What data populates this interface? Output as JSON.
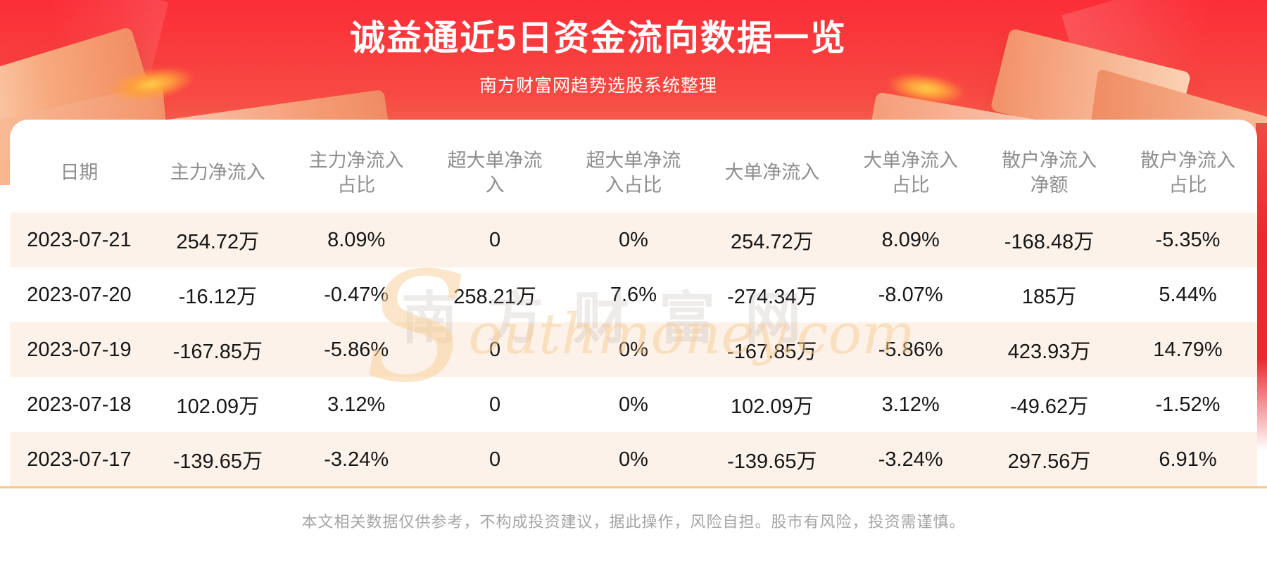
{
  "banner": {
    "title": "诚益通近5日资金流向数据一览",
    "subtitle": "南方财富网趋势选股系统整理"
  },
  "table": {
    "headers": [
      "日期",
      "主力净流入",
      "主力净流入占比",
      "超大单净流入",
      "超大单净流入占比",
      "大单净流入",
      "大单净流入占比",
      "散户净流入净额",
      "散户净流入占比"
    ],
    "rows": [
      {
        "cells": [
          "2023-07-21",
          "254.72万",
          "8.09%",
          "0",
          "0%",
          "254.72万",
          "8.09%",
          "-168.48万",
          "-5.35%"
        ]
      },
      {
        "cells": [
          "2023-07-20",
          "-16.12万",
          "-0.47%",
          "258.21万",
          "7.6%",
          "-274.34万",
          "-8.07%",
          "185万",
          "5.44%"
        ]
      },
      {
        "cells": [
          "2023-07-19",
          "-167.85万",
          "-5.86%",
          "0",
          "0%",
          "-167.85万",
          "-5.86%",
          "423.93万",
          "14.79%"
        ]
      },
      {
        "cells": [
          "2023-07-18",
          "102.09万",
          "3.12%",
          "0",
          "0%",
          "102.09万",
          "3.12%",
          "-49.62万",
          "-1.52%"
        ]
      },
      {
        "cells": [
          "2023-07-17",
          "-139.65万",
          "-3.24%",
          "0",
          "0%",
          "-139.65万",
          "-3.24%",
          "297.56万",
          "6.91%"
        ]
      }
    ]
  },
  "chart_data": {
    "type": "table",
    "title": "诚益通近5日资金流向数据一览",
    "subtitle": "南方财富网趋势选股系统整理",
    "columns": [
      "日期",
      "主力净流入",
      "主力净流入占比",
      "超大单净流入",
      "超大单净流入占比",
      "大单净流入",
      "大单净流入占比",
      "散户净流入净额",
      "散户净流入占比"
    ],
    "rows": [
      [
        "2023-07-21",
        "254.72万",
        "8.09%",
        "0",
        "0%",
        "254.72万",
        "8.09%",
        "-168.48万",
        "-5.35%"
      ],
      [
        "2023-07-20",
        "-16.12万",
        "-0.47%",
        "258.21万",
        "7.6%",
        "-274.34万",
        "-8.07%",
        "185万",
        "5.44%"
      ],
      [
        "2023-07-19",
        "-167.85万",
        "-5.86%",
        "0",
        "0%",
        "-167.85万",
        "-5.86%",
        "423.93万",
        "14.79%"
      ],
      [
        "2023-07-18",
        "102.09万",
        "3.12%",
        "0",
        "0%",
        "102.09万",
        "3.12%",
        "-49.62万",
        "-1.52%"
      ],
      [
        "2023-07-17",
        "-139.65万",
        "-3.24%",
        "0",
        "0%",
        "-139.65万",
        "-3.24%",
        "297.56万",
        "6.91%"
      ]
    ]
  },
  "watermark": {
    "cn": "南方财富网",
    "en_initial": "S",
    "en_rest": "outhmoney.com"
  },
  "footer": {
    "disclaimer": "本文相关数据仅供参考，不构成投资建议，据此操作，风险自担。股市有风险，投资需谨慎。"
  },
  "colors": {
    "banner_top": "#fb2d37",
    "banner_mid": "#f74a43",
    "banner_bottom": "#f2845e",
    "accent_line": "#f8c88c",
    "row_alt_bg": "#fdf2e9",
    "header_text": "#8f8f8f",
    "body_text": "#161616",
    "footer_text": "#a5a5a5"
  }
}
